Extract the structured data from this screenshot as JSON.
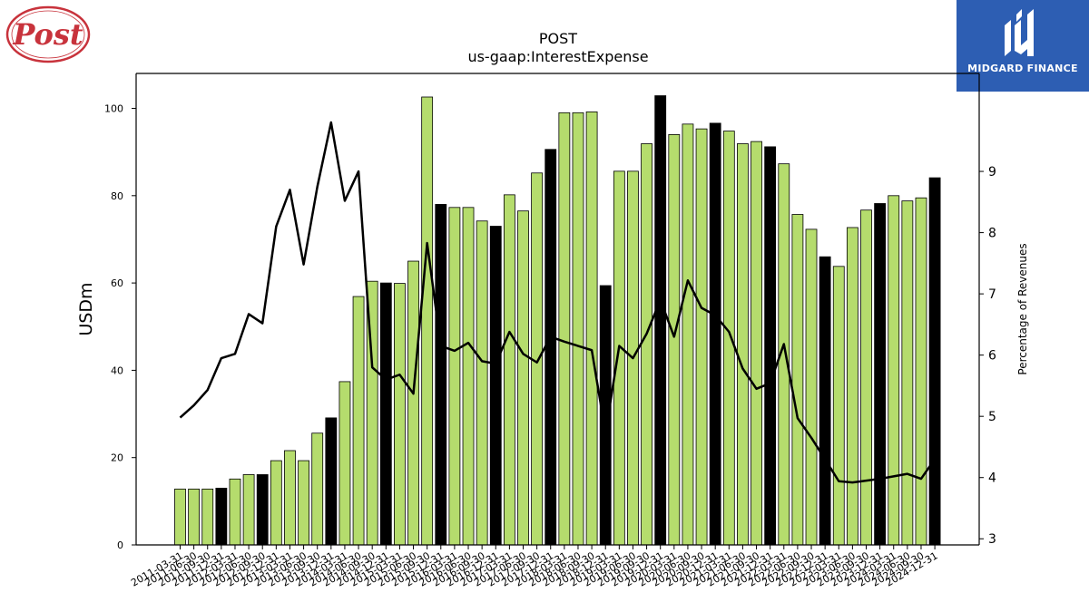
{
  "header": {
    "ticker": "POST",
    "metric": "us-gaap:InterestExpense",
    "left_logo_text": "Post",
    "right_logo_text": "MIDGARD FINANCE"
  },
  "colors": {
    "bar_quarter": "#b5dc6d",
    "bar_annual": "#000000",
    "line": "#000000",
    "brand_bg": "#2d5eb3"
  },
  "chart_data": {
    "type": "bar",
    "title": "POST",
    "subtitle": "us-gaap:InterestExpense",
    "ylabel": "USDm",
    "y2label": "Percentage of Revenues",
    "ylim": [
      0,
      108
    ],
    "y2lim": [
      2.9,
      10.6
    ],
    "yticks": [
      "0",
      "20",
      "40",
      "60",
      "80",
      "100"
    ],
    "y2ticks": [
      "3",
      "4",
      "5",
      "6",
      "7",
      "8",
      "9"
    ],
    "categories": [
      "2011-03-31",
      "2011-06-30",
      "2011-09-30",
      "2011-12-31",
      "2012-03-31",
      "2012-06-30",
      "2012-09-30",
      "2012-12-31",
      "2013-03-31",
      "2013-06-30",
      "2013-09-30",
      "2013-12-31",
      "2014-03-31",
      "2014-06-30",
      "2014-09-30",
      "2014-12-31",
      "2015-03-31",
      "2015-06-30",
      "2015-09-30",
      "2015-12-31",
      "2016-03-31",
      "2016-06-30",
      "2016-09-30",
      "2016-12-31",
      "2017-03-31",
      "2017-06-30",
      "2017-09-30",
      "2017-12-31",
      "2018-03-31",
      "2018-06-30",
      "2018-09-30",
      "2018-12-31",
      "2019-03-31",
      "2019-06-30",
      "2019-09-30",
      "2019-12-31",
      "2020-03-31",
      "2020-06-30",
      "2020-09-30",
      "2020-12-31",
      "2021-03-31",
      "2021-06-30",
      "2021-09-30",
      "2021-12-31",
      "2022-03-31",
      "2022-06-30",
      "2022-09-30",
      "2022-12-31",
      "2023-03-31",
      "2023-06-30",
      "2023-09-30",
      "2023-12-31",
      "2024-03-31",
      "2024-06-30",
      "2024-09-30",
      "2024-12-31"
    ],
    "series": [
      {
        "kind": "bar",
        "values": [
          12.8,
          12.8,
          12.8,
          13.0,
          15.1,
          16.1,
          16.1,
          19.3,
          21.6,
          19.3,
          25.6,
          29.1,
          37.4,
          56.9,
          60.4,
          60.0,
          59.9,
          65.0,
          102.6,
          78.0,
          77.3,
          77.3,
          74.2,
          73.0,
          80.2,
          76.5,
          85.2,
          90.6,
          99.0,
          99.0,
          99.2,
          59.4,
          85.6,
          85.6,
          91.9,
          102.9,
          94.0,
          96.4,
          95.3,
          96.6,
          94.8,
          91.9,
          92.4,
          91.2,
          87.3,
          75.7,
          72.3,
          66.0,
          63.8,
          72.7,
          76.7,
          78.2,
          80.0,
          78.8,
          79.5,
          84.1
        ],
        "annual": [
          false,
          false,
          false,
          true,
          false,
          false,
          true,
          false,
          false,
          false,
          false,
          true,
          false,
          false,
          false,
          true,
          false,
          false,
          false,
          true,
          false,
          false,
          false,
          true,
          false,
          false,
          false,
          true,
          false,
          false,
          false,
          true,
          false,
          false,
          false,
          true,
          false,
          false,
          false,
          true,
          false,
          false,
          false,
          true,
          false,
          false,
          false,
          true,
          false,
          false,
          false,
          true,
          false,
          false,
          false,
          true
        ]
      },
      {
        "kind": "line",
        "axis": "right",
        "values": [
          4.98,
          5.18,
          5.43,
          5.95,
          6.02,
          6.67,
          6.52,
          8.1,
          8.7,
          7.48,
          8.75,
          9.8,
          8.52,
          9.0,
          5.8,
          5.6,
          5.68,
          5.37,
          7.83,
          6.15,
          6.07,
          6.2,
          5.9,
          5.86,
          6.38,
          6.02,
          5.88,
          6.3,
          6.22,
          6.15,
          6.08,
          4.73,
          6.15,
          5.95,
          6.35,
          6.9,
          6.3,
          7.22,
          6.77,
          6.65,
          6.38,
          5.78,
          5.45,
          5.54,
          6.18,
          4.97,
          4.65,
          4.3,
          3.94,
          3.92,
          3.95,
          3.98,
          4.02,
          4.06,
          3.98,
          4.3
        ]
      }
    ]
  }
}
